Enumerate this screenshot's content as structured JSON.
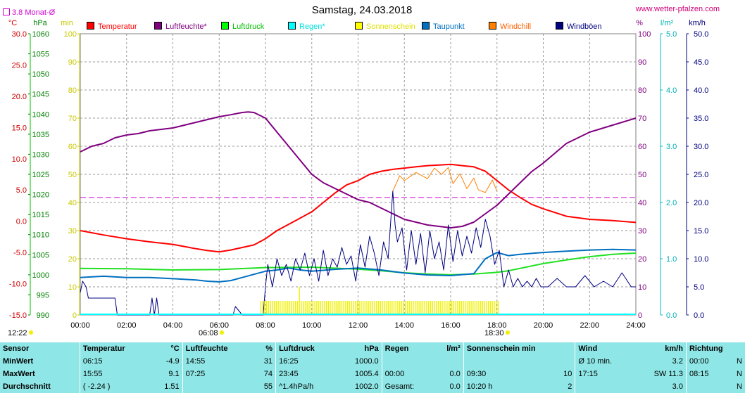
{
  "header": {
    "title": "Samstag, 24.03.2018",
    "url": "www.wetter-pfalzen.com",
    "monthly_avg_label": "3.8 Monat-Ø"
  },
  "legend": [
    {
      "label": "Temperatur",
      "color": "#ff0000"
    },
    {
      "label": "Luftfeuchte*",
      "color": "#800080"
    },
    {
      "label": "Luftdruck",
      "color": "#00ff00"
    },
    {
      "label": "Regen*",
      "color": "#00ffff"
    },
    {
      "label": "Sonnenschein",
      "color": "#ffff00"
    },
    {
      "label": "Taupunkt",
      "color": "#0070c0"
    },
    {
      "label": "Windchill",
      "color": "#ff8000"
    },
    {
      "label": "Windböen",
      "color": "#000080"
    }
  ],
  "axis_units": {
    "temp": "°C",
    "pressure": "hPa",
    "sun": "min",
    "humidity": "%",
    "rain": "l/m²",
    "wind": "km/h"
  },
  "markers": {
    "now": "12:22",
    "sunrise": "06:08",
    "sunset": "18:30"
  },
  "chart_data": {
    "type": "line",
    "title": "Samstag, 24.03.2018",
    "x_ticks": [
      "00:00",
      "02:00",
      "04:00",
      "06:00",
      "08:00",
      "10:00",
      "12:00",
      "14:00",
      "16:00",
      "18:00",
      "20:00",
      "22:00",
      "24:00"
    ],
    "x_range_hours": [
      0,
      24
    ],
    "axes": {
      "temp": {
        "ticks": [
          "30.0",
          "25.0",
          "20.0",
          "15.0",
          "10.0",
          "5.0",
          "0.0",
          "-5.0",
          "-10.0",
          "-15.0"
        ],
        "ylim": [
          -15,
          30
        ],
        "color": "#d00000"
      },
      "pressure": {
        "ticks": [
          "1060",
          "1055",
          "1050",
          "1045",
          "1040",
          "1035",
          "1030",
          "1025",
          "1020",
          "1015",
          "1010",
          "1005",
          "1000",
          "995",
          "990"
        ],
        "ylim": [
          990,
          1060
        ],
        "color": "#008000"
      },
      "sun": {
        "ticks": [
          "100",
          "90",
          "80",
          "70",
          "60",
          "50",
          "40",
          "30",
          "20",
          "10",
          "0"
        ],
        "ylim": [
          0,
          100
        ],
        "color": "#c8c800"
      },
      "humidity": {
        "ticks": [
          "100",
          "90",
          "80",
          "70",
          "60",
          "50",
          "40",
          "30",
          "20",
          "10",
          "0"
        ],
        "ylim": [
          0,
          100
        ],
        "color": "#800080"
      },
      "rain": {
        "ticks": [
          "5.0",
          "4.0",
          "3.0",
          "2.0",
          "1.0",
          "0.0"
        ],
        "ylim": [
          0,
          5
        ],
        "color": "#00c0c0"
      },
      "wind": {
        "ticks": [
          "50.0",
          "45.0",
          "40.0",
          "35.0",
          "30.0",
          "25.0",
          "20.0",
          "15.0",
          "10.0",
          "5.0",
          "0.0"
        ],
        "ylim": [
          0,
          50
        ],
        "color": "#000080"
      }
    },
    "monthly_avg_temp": 3.8,
    "grid": true,
    "series": [
      {
        "name": "Temperatur",
        "axis": "temp",
        "x": [
          0,
          1,
          2,
          3,
          4,
          5,
          5.5,
          6,
          6.5,
          7,
          7.5,
          8,
          8.5,
          9,
          9.5,
          10,
          10.5,
          11,
          11.5,
          12,
          12.5,
          13,
          13.5,
          14,
          14.5,
          15,
          15.5,
          16,
          16.5,
          17,
          17.5,
          18,
          18.5,
          19,
          19.5,
          20,
          21,
          22,
          23,
          24
        ],
        "y": [
          -1.5,
          -2.2,
          -2.8,
          -3.3,
          -3.7,
          -4.4,
          -4.7,
          -4.9,
          -4.6,
          -4.2,
          -3.8,
          -2.8,
          -1.5,
          -0.5,
          0.5,
          1.5,
          3.0,
          4.5,
          5.8,
          6.5,
          7.5,
          8.0,
          8.3,
          8.5,
          8.7,
          8.9,
          9.0,
          9.1,
          8.9,
          8.7,
          8.0,
          6.5,
          5.0,
          3.8,
          2.7,
          2.0,
          0.8,
          0.3,
          0.1,
          -0.2
        ]
      },
      {
        "name": "Luftfeuchte*",
        "axis": "humidity",
        "x": [
          0,
          0.5,
          1,
          1.5,
          2,
          2.5,
          3,
          3.5,
          4,
          4.5,
          5,
          5.5,
          6,
          6.5,
          7,
          7.25,
          7.5,
          8,
          8.5,
          9,
          9.5,
          10,
          10.5,
          11,
          11.5,
          12,
          12.5,
          13,
          13.5,
          14,
          14.5,
          15,
          15.5,
          16,
          16.5,
          17,
          17.5,
          18,
          18.5,
          19,
          19.5,
          20,
          21,
          22,
          23,
          24
        ],
        "y": [
          58,
          60,
          61,
          63,
          64,
          64.5,
          65.5,
          66,
          66.5,
          67.5,
          68.5,
          69.5,
          70.5,
          71.2,
          72,
          72.2,
          72,
          70,
          65,
          60,
          55,
          50,
          47,
          45,
          43,
          41,
          40,
          38,
          36,
          34,
          33,
          32,
          31.5,
          31,
          31.5,
          33,
          36,
          39,
          43,
          47,
          51,
          54,
          61,
          65,
          67.5,
          70
        ]
      },
      {
        "name": "Luftdruck",
        "axis": "pressure",
        "x": [
          0,
          2,
          4,
          6,
          8,
          10,
          12,
          13,
          14,
          15,
          16,
          17,
          18,
          18.5,
          19,
          20,
          21,
          22,
          23,
          24
        ],
        "y": [
          1001.6,
          1001.5,
          1001.2,
          1001.3,
          1001.8,
          1001.9,
          1001.4,
          1001.0,
          1000.5,
          1000.2,
          1000.0,
          1000.2,
          1000.6,
          1001.0,
          1001.6,
          1002.8,
          1003.7,
          1004.5,
          1005.1,
          1005.4
        ]
      },
      {
        "name": "Taupunkt",
        "axis": "temp",
        "x": [
          0,
          1,
          2,
          3,
          4,
          5,
          5.5,
          6,
          6.5,
          7,
          7.5,
          8,
          8.5,
          9,
          9.5,
          10,
          11,
          12,
          13,
          14,
          15,
          16,
          17,
          17.5,
          18,
          18.5,
          19,
          20,
          21,
          22,
          23,
          24
        ],
        "y": [
          -9.0,
          -8.8,
          -9.0,
          -9.0,
          -9.2,
          -9.4,
          -9.6,
          -9.7,
          -9.5,
          -9.0,
          -8.5,
          -8.0,
          -7.8,
          -7.5,
          -7.8,
          -8.0,
          -7.7,
          -7.5,
          -7.8,
          -8.3,
          -8.6,
          -8.7,
          -8.4,
          -6.0,
          -5.0,
          -5.5,
          -5.3,
          -5.0,
          -4.8,
          -4.6,
          -4.5,
          -4.6
        ]
      },
      {
        "name": "Windchill",
        "axis": "temp",
        "x": [
          13.5,
          13.8,
          14,
          14.5,
          15,
          15.3,
          15.6,
          15.9,
          16.1,
          16.4,
          16.7,
          17,
          17.2,
          17.5,
          17.8,
          18
        ],
        "y": [
          4.8,
          7.3,
          6.5,
          7.8,
          6.8,
          8.5,
          7.5,
          8.6,
          6.0,
          7.6,
          5.2,
          6.9,
          5.0,
          4.6,
          6.6,
          4.8
        ]
      },
      {
        "name": "Windböen",
        "axis": "wind",
        "x": [
          0,
          0.1,
          0.25,
          0.35,
          0.6,
          1.5,
          1.6,
          2,
          3,
          3.1,
          3.2,
          3.3,
          3.4,
          4,
          6,
          6.6,
          6.7,
          7,
          7.9,
          8,
          8.1,
          8.3,
          8.5,
          8.7,
          8.9,
          9.1,
          9.3,
          9.5,
          9.7,
          9.9,
          10.1,
          10.3,
          10.5,
          10.7,
          10.9,
          11.1,
          11.3,
          11.5,
          11.7,
          11.9,
          12.1,
          12.3,
          12.5,
          12.7,
          12.9,
          13.1,
          13.3,
          13.5,
          13.6,
          13.7,
          13.9,
          14.1,
          14.3,
          14.5,
          14.7,
          14.9,
          15.1,
          15.3,
          15.5,
          15.7,
          15.9,
          16.1,
          16.3,
          16.5,
          16.7,
          16.9,
          17.1,
          17.3,
          17.5,
          17.7,
          17.9,
          18.1,
          18.3,
          18.5,
          18.7,
          18.9,
          19.1,
          19.3,
          19.5,
          19.7,
          19.9,
          20.2,
          20.6,
          21,
          21.4,
          21.8,
          22.2,
          22.6,
          23,
          23.4,
          23.8,
          24
        ],
        "y": [
          4.0,
          6.0,
          5.0,
          3.0,
          3.0,
          3.0,
          0.0,
          0.0,
          0.0,
          3.0,
          0.0,
          3.0,
          0.0,
          0.0,
          0.0,
          0.0,
          1.5,
          0.0,
          0.0,
          5.0,
          9.0,
          5.0,
          10.0,
          7.0,
          9.0,
          6.0,
          10.0,
          8.0,
          11.0,
          7.0,
          10.0,
          6.0,
          11.5,
          7.0,
          10.0,
          8.5,
          12.0,
          9.0,
          10.5,
          6.0,
          12.5,
          8.5,
          14.0,
          11.0,
          7.0,
          13.0,
          10.0,
          22.0,
          16.0,
          13.0,
          15.5,
          8.0,
          15.0,
          9.0,
          14.5,
          7.5,
          15.0,
          10.0,
          13.0,
          8.0,
          16.0,
          9.5,
          15.0,
          10.5,
          14.0,
          11.0,
          15.5,
          12.0,
          17.0,
          14.0,
          9.0,
          11.5,
          5.0,
          8.0,
          5.0,
          6.5,
          5.0,
          6.0,
          5.0,
          6.5,
          5.0,
          5.0,
          6.5,
          5.0,
          5.0,
          7.0,
          5.0,
          6.0,
          5.0,
          7.5,
          5.0,
          5.0
        ]
      },
      {
        "name": "Sonnenschein",
        "axis": "sun",
        "type": "bar",
        "x_start": 7.8,
        "x_end": 18.1,
        "y": 5,
        "x_peak": 9.5,
        "y_peak": 10
      }
    ]
  },
  "stats": {
    "headers": [
      "Sensor",
      "Temperatur",
      "°C",
      "Luftfeuchte",
      "%",
      "Luftdruck",
      "hPa",
      "Regen",
      "l/m²",
      "Sonnenschein min",
      "Wind",
      "km/h",
      "Richtung"
    ],
    "rows": [
      [
        "MinWert",
        "06:15",
        "-4.9",
        "14:55",
        "31",
        "16:25",
        "1000.0",
        "",
        "",
        "",
        "",
        "Ø 10 min.",
        "3.2",
        "00:00",
        "N"
      ],
      [
        "MaxWert",
        "15:55",
        "9.1",
        "07:25",
        "74",
        "23:45",
        "1005.4",
        "00:00",
        "0.0",
        "09:30",
        "10",
        "17:15",
        "SW 11.3",
        "08:15",
        "N"
      ],
      [
        "Durchschnitt",
        "( -2.24 )",
        "1.51",
        "",
        "55",
        "^1.4hPa/h",
        "1002.0",
        "Gesamt:",
        "0.0",
        "10:20 h",
        "2",
        "",
        "3.0",
        "",
        "N"
      ]
    ]
  }
}
